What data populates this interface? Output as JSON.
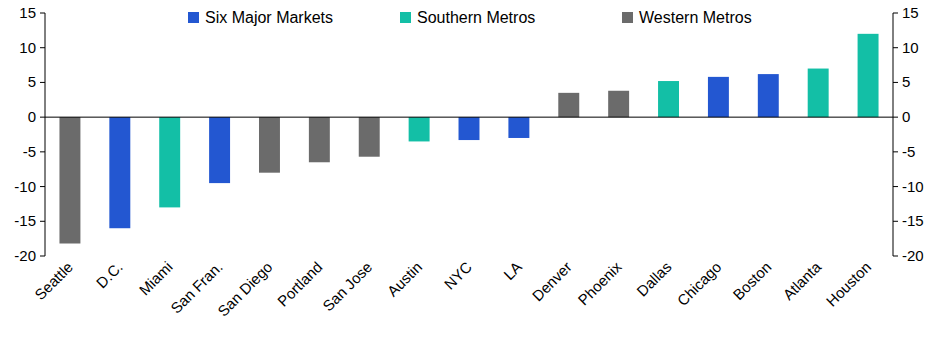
{
  "chart_data": {
    "type": "bar",
    "categories": [
      "Seattle",
      "D.C.",
      "Miami",
      "San Fran.",
      "San Diego",
      "Portland",
      "San Jose",
      "Austin",
      "NYC",
      "LA",
      "Denver",
      "Phoenix",
      "Dallas",
      "Chicago",
      "Boston",
      "Atlanta",
      "Houston"
    ],
    "series": [
      {
        "name": "Six Major Markets",
        "color": "#2357d1",
        "values": [
          null,
          -16,
          null,
          -9.5,
          null,
          null,
          null,
          null,
          -3.3,
          -3,
          null,
          null,
          null,
          5.8,
          6.2,
          null,
          null
        ]
      },
      {
        "name": "Southern Metros",
        "color": "#13bfa6",
        "values": [
          null,
          null,
          -13,
          null,
          null,
          null,
          null,
          -3.5,
          null,
          null,
          null,
          null,
          5.2,
          null,
          null,
          7,
          12
        ]
      },
      {
        "name": "Western Metros",
        "color": "#6b6b6b",
        "values": [
          -18.2,
          null,
          null,
          null,
          -8,
          -6.5,
          -5.7,
          null,
          null,
          null,
          3.5,
          3.8,
          null,
          null,
          null,
          null,
          null
        ]
      }
    ],
    "ylim": [
      -20,
      15
    ],
    "yticks": [
      -20,
      -15,
      -10,
      -5,
      0,
      5,
      10,
      15
    ],
    "legend": "top"
  }
}
